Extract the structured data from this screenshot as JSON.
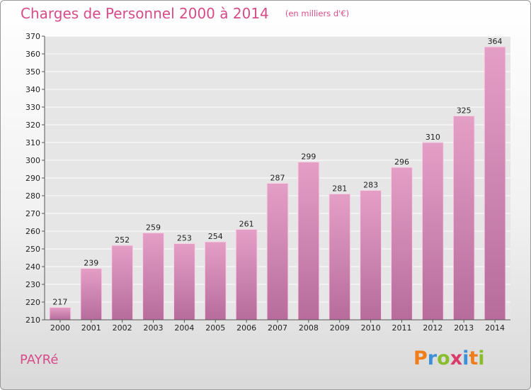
{
  "chart_data": {
    "type": "bar",
    "title": "Charges de Personnel 2000 à 2014",
    "subtitle": "(en milliers d'€)",
    "xlabel": "",
    "ylabel": "",
    "categories": [
      "2000",
      "2001",
      "2002",
      "2003",
      "2004",
      "2005",
      "2006",
      "2007",
      "2008",
      "2009",
      "2010",
      "2011",
      "2012",
      "2013",
      "2014"
    ],
    "values": [
      217,
      239,
      252,
      259,
      253,
      254,
      261,
      287,
      299,
      281,
      283,
      296,
      310,
      325,
      364
    ],
    "ylim": [
      210,
      370
    ],
    "ytick_step": 10,
    "grid": true,
    "legend": "none",
    "bar_color": "#e49fc6",
    "bar_color_bottom": "#b76c9c"
  },
  "footer": {
    "commune": "PAYRé",
    "brand": "Proxiti"
  },
  "colors": {
    "title": "#d64c8a",
    "logo_letters": [
      "#ef7d1a",
      "#3e8fd8",
      "#89bd2e",
      "#d93b6b",
      "#3e8fd8",
      "#ef7d1a",
      "#89bd2e"
    ]
  }
}
